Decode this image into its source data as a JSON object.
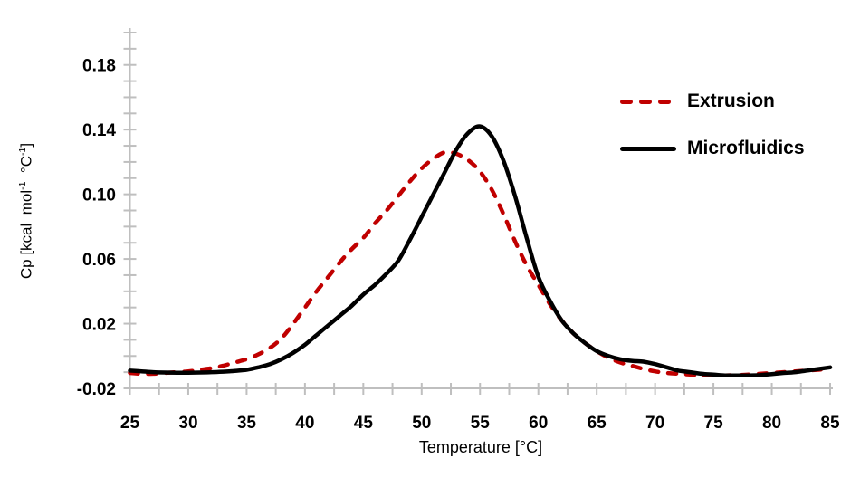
{
  "figure_title": "",
  "axis_color": "#BFBFBF",
  "x_axis": {
    "title": "Temperature [°C]",
    "range": [
      25,
      85
    ],
    "minor_tick_step": 2.5,
    "tick_labels": [
      "25",
      "30",
      "35",
      "40",
      "45",
      "50",
      "55",
      "60",
      "65",
      "70",
      "75",
      "80",
      "85"
    ]
  },
  "y_axis": {
    "title_parts": [
      "Cp [kcal  mol",
      "-1",
      "  °C",
      "-1",
      "]"
    ],
    "range": [
      -0.02,
      0.2
    ],
    "minor_tick_step": 0.01,
    "tick_labels": [
      "-0.02",
      "0.02",
      "0.06",
      "0.10",
      "0.14",
      "0.18"
    ]
  },
  "legend": {
    "position": "upper right",
    "items": [
      {
        "label": "Extrusion",
        "color": "#C00000",
        "style": "dashed"
      },
      {
        "label": "Microfluidics",
        "color": "#000000",
        "style": "solid"
      }
    ]
  },
  "chart_data": {
    "type": "line",
    "title": "",
    "xlabel": "Temperature [°C]",
    "ylabel": "Cp [kcal mol-1 °C-1]",
    "xlim": [
      25,
      85
    ],
    "ylim": [
      -0.02,
      0.2
    ],
    "grid": false,
    "legend_position": "upper right",
    "x": [
      25,
      26,
      27,
      28,
      29,
      30,
      31,
      32,
      33,
      34,
      35,
      36,
      37,
      38,
      39,
      40,
      41,
      42,
      43,
      44,
      45,
      46,
      47,
      48,
      49,
      50,
      51,
      52,
      53,
      54,
      55,
      56,
      57,
      58,
      59,
      60,
      61,
      62,
      63,
      64,
      65,
      66,
      67,
      68,
      69,
      70,
      71,
      72,
      73,
      74,
      75,
      76,
      77,
      78,
      79,
      80,
      81,
      82,
      83,
      84,
      85
    ],
    "series": [
      {
        "name": "Extrusion",
        "color": "#C00000",
        "dash": true,
        "peak_temperature_c": 52,
        "peak_cp": 0.126,
        "values": [
          -0.0105,
          -0.011,
          -0.011,
          -0.0105,
          -0.01,
          -0.0095,
          -0.0085,
          -0.0075,
          -0.006,
          -0.004,
          -0.002,
          0.001,
          0.005,
          0.011,
          0.02,
          0.03,
          0.04,
          0.049,
          0.058,
          0.066,
          0.073,
          0.082,
          0.09,
          0.099,
          0.108,
          0.116,
          0.122,
          0.126,
          0.125,
          0.121,
          0.114,
          0.103,
          0.088,
          0.071,
          0.056,
          0.044,
          0.032,
          0.022,
          0.014,
          0.008,
          0.003,
          -0.001,
          -0.004,
          -0.006,
          -0.008,
          -0.0095,
          -0.0105,
          -0.011,
          -0.0115,
          -0.012,
          -0.012,
          -0.012,
          -0.0118,
          -0.0115,
          -0.011,
          -0.0105,
          -0.01,
          -0.0095,
          -0.009,
          -0.0085,
          -0.008
        ]
      },
      {
        "name": "Microfluidics",
        "color": "#000000",
        "dash": false,
        "peak_temperature_c": 55,
        "peak_cp": 0.142,
        "values": [
          -0.009,
          -0.0095,
          -0.01,
          -0.0102,
          -0.0103,
          -0.0103,
          -0.0102,
          -0.01,
          -0.0097,
          -0.0092,
          -0.0085,
          -0.007,
          -0.005,
          -0.002,
          0.002,
          0.007,
          0.013,
          0.019,
          0.025,
          0.031,
          0.038,
          0.044,
          0.051,
          0.059,
          0.072,
          0.086,
          0.1,
          0.114,
          0.128,
          0.138,
          0.142,
          0.136,
          0.121,
          0.099,
          0.073,
          0.049,
          0.034,
          0.022,
          0.014,
          0.008,
          0.003,
          0.0,
          -0.002,
          -0.003,
          -0.0035,
          -0.005,
          -0.007,
          -0.009,
          -0.01,
          -0.011,
          -0.0115,
          -0.012,
          -0.012,
          -0.012,
          -0.0118,
          -0.0112,
          -0.0105,
          -0.01,
          -0.009,
          -0.008,
          -0.007
        ]
      }
    ]
  }
}
